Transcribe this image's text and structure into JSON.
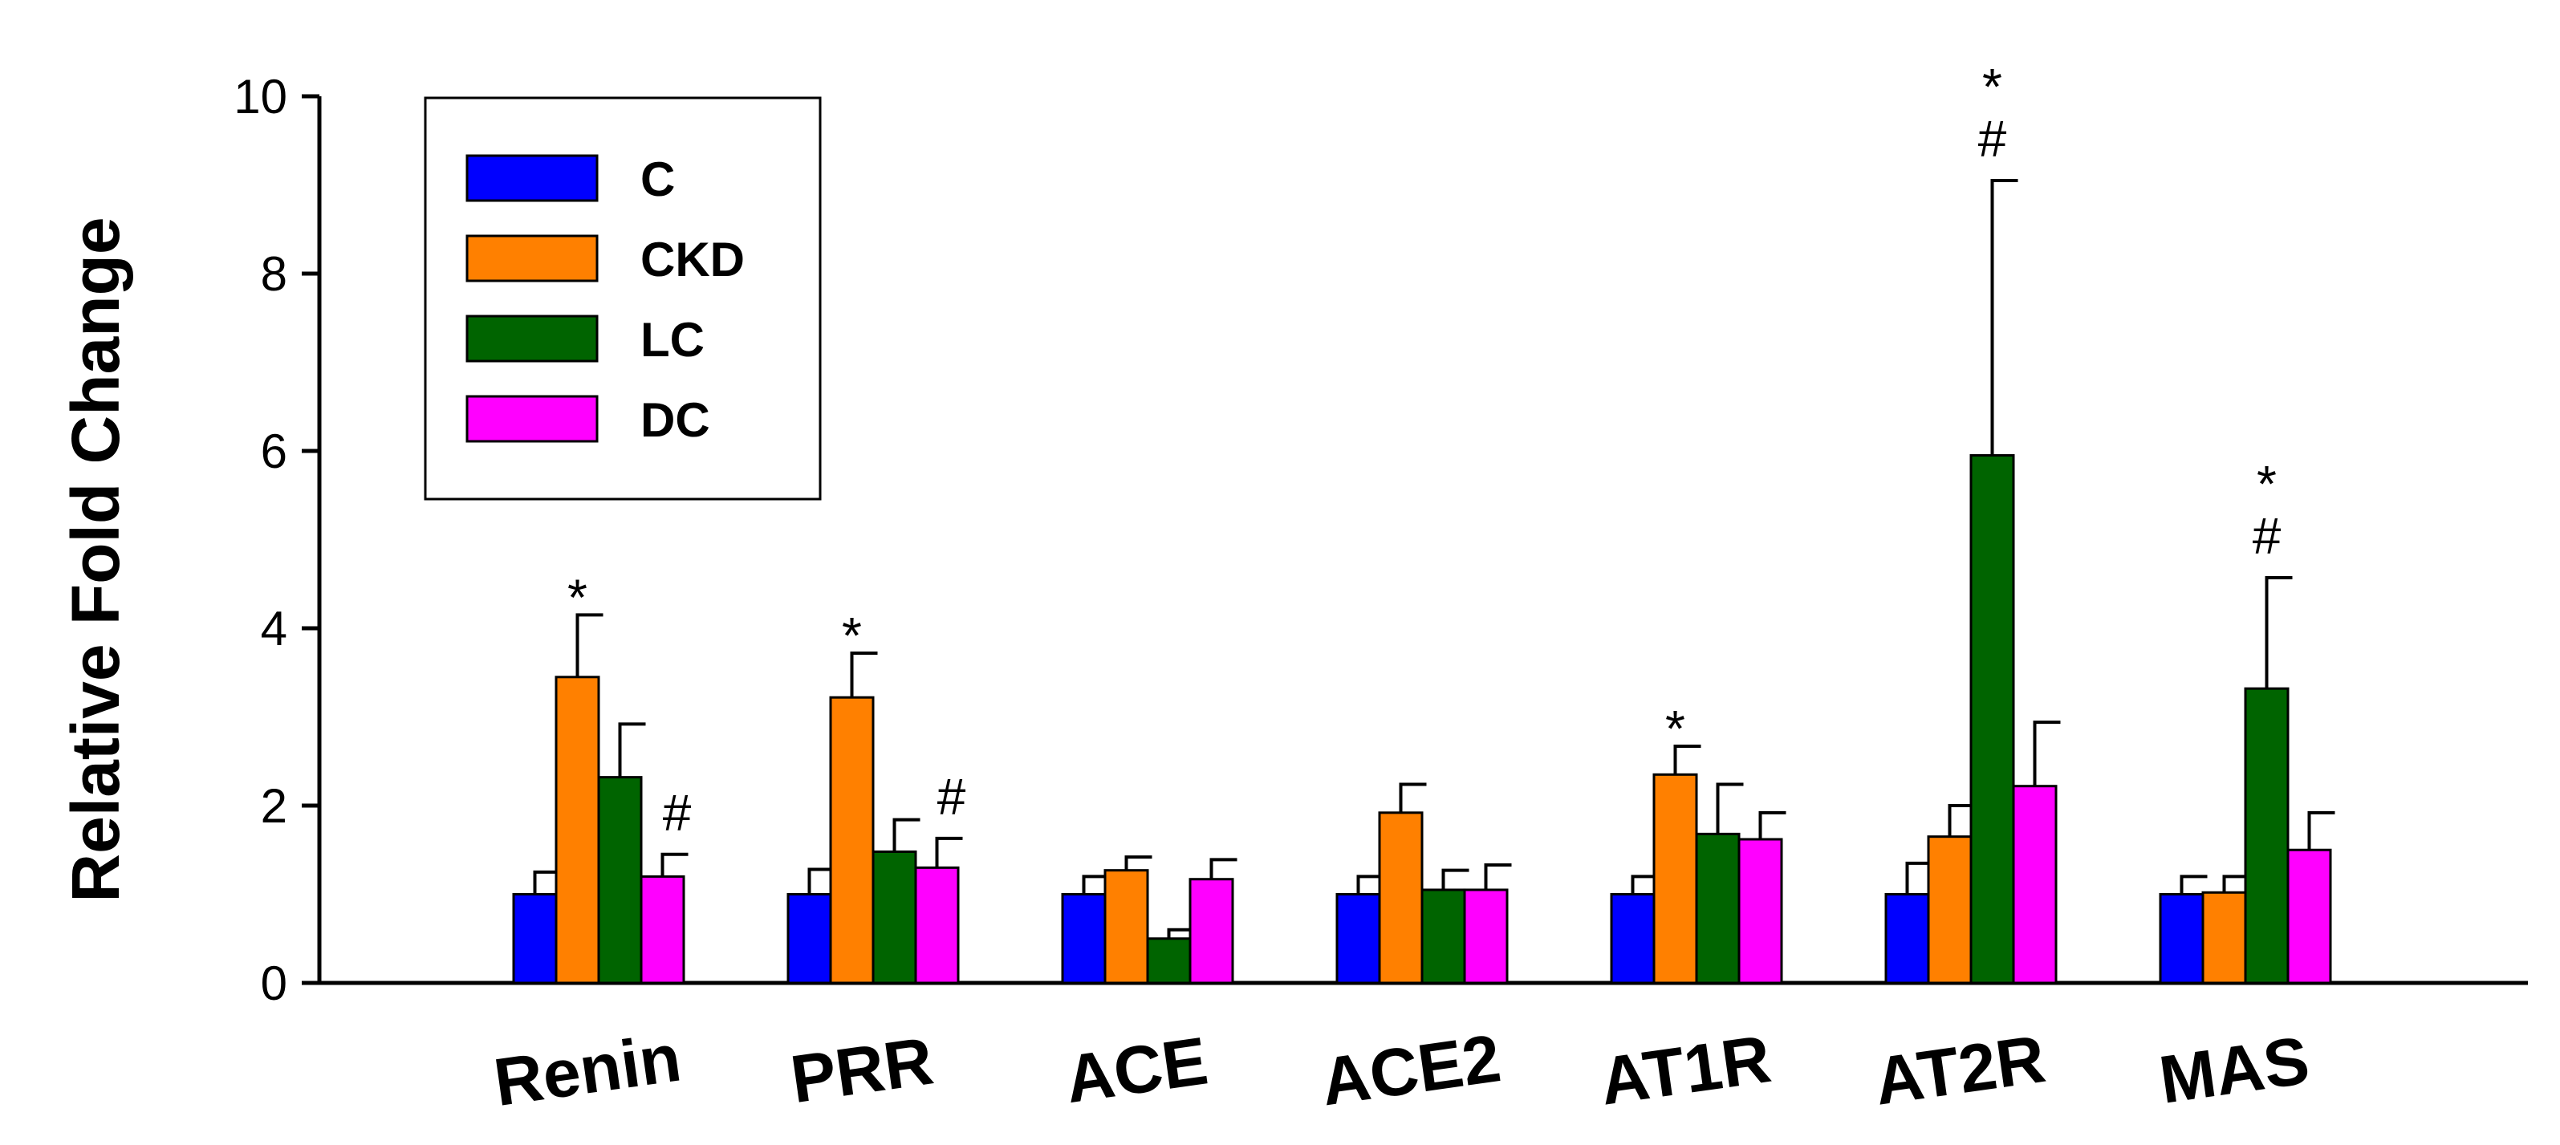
{
  "chart_data": {
    "type": "bar",
    "title": "",
    "xlabel": "",
    "ylabel": "Relative Fold Change",
    "ylim": [
      0,
      10
    ],
    "yticks": [
      0,
      2,
      4,
      6,
      8,
      10
    ],
    "grid": false,
    "legend_position": "top-left",
    "categories": [
      "Renin",
      "PRR",
      "ACE",
      "ACE2",
      "AT1R",
      "AT2R",
      "MAS"
    ],
    "series": [
      {
        "name": "C",
        "color": "#0000FF",
        "values": [
          1.0,
          1.0,
          1.0,
          1.0,
          1.0,
          1.0,
          1.0
        ],
        "errors": [
          0.25,
          0.28,
          0.2,
          0.2,
          0.2,
          0.35,
          0.2
        ],
        "annotations": [
          "",
          "",
          "",
          "",
          "",
          "",
          ""
        ]
      },
      {
        "name": "CKD",
        "color": "#FF8000",
        "values": [
          3.45,
          3.22,
          1.27,
          1.92,
          2.35,
          1.65,
          1.02
        ],
        "errors": [
          0.7,
          0.5,
          0.15,
          0.32,
          0.32,
          0.35,
          0.18
        ],
        "annotations": [
          "*",
          "*",
          "",
          "",
          "*",
          "",
          ""
        ]
      },
      {
        "name": "LC",
        "color": "#006400",
        "values": [
          2.32,
          1.48,
          0.5,
          1.05,
          1.68,
          5.95,
          3.32
        ],
        "errors": [
          0.6,
          0.36,
          0.1,
          0.22,
          0.56,
          3.1,
          1.25
        ],
        "annotations": [
          "",
          "",
          "",
          "",
          "",
          "*#",
          "*#"
        ]
      },
      {
        "name": "DC",
        "color": "#FF00FF",
        "values": [
          1.2,
          1.3,
          1.17,
          1.05,
          1.62,
          2.22,
          1.5
        ],
        "errors": [
          0.25,
          0.33,
          0.22,
          0.28,
          0.3,
          0.72,
          0.42
        ],
        "annotations": [
          "#",
          "#",
          "",
          "",
          "",
          "",
          ""
        ]
      }
    ]
  }
}
